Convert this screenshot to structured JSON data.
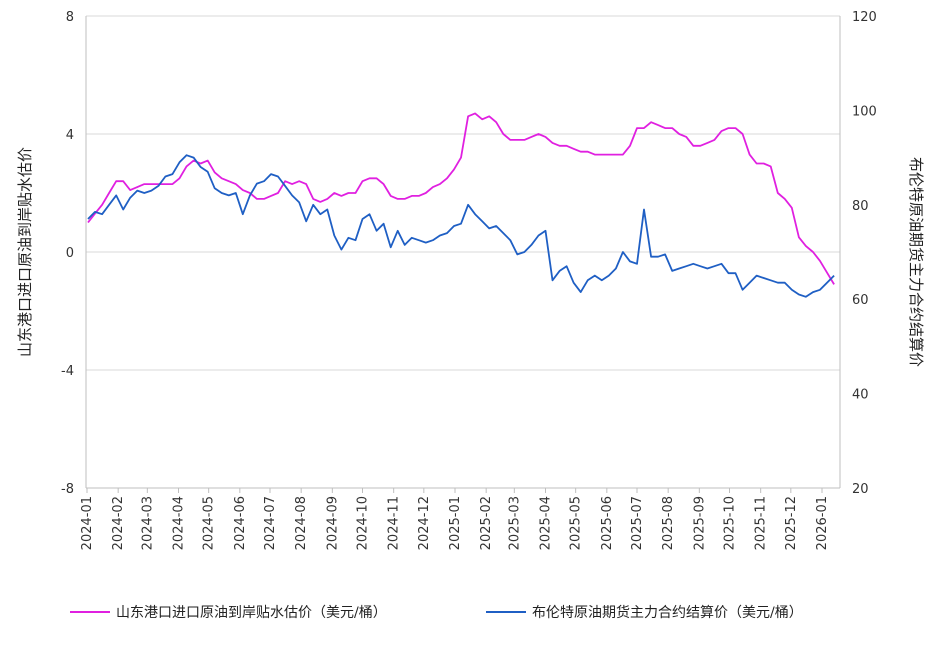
{
  "chart_data": {
    "type": "line",
    "y_left_label": "山东港口进口原油到岸贴水估价",
    "y_right_label": "布伦特原油期货主力合约结算价",
    "y_left_ticks": [
      "8",
      "4",
      "0",
      "-4",
      "-8"
    ],
    "y_right_ticks": [
      "120",
      "100",
      "80",
      "60",
      "40",
      "20"
    ],
    "ylim_left": [
      -8,
      8
    ],
    "ylim_right": [
      20,
      120
    ],
    "grid": "horizontal",
    "legend_position": "bottom",
    "x_ticks": [
      "2024-01",
      "2024-02",
      "2024-03",
      "2024-04",
      "2024-05",
      "2024-06",
      "2024-07",
      "2024-08",
      "2024-09",
      "2024-10",
      "2024-11",
      "2024-12",
      "2025-01",
      "2025-02",
      "2025-03",
      "2025-04",
      "2025-05",
      "2025-06",
      "2025-07",
      "2025-08",
      "2025-09",
      "2025-10",
      "2025-11",
      "2025-12",
      "2026-01"
    ],
    "series": [
      {
        "name": "山东港口进口原油到岸贴水估价（美元/桶）",
        "color": "#e020e0",
        "axis": "left",
        "x": [
          "2024-01-02",
          "2024-01-09",
          "2024-01-16",
          "2024-01-23",
          "2024-01-30",
          "2024-02-06",
          "2024-02-13",
          "2024-02-20",
          "2024-02-27",
          "2024-03-05",
          "2024-03-12",
          "2024-03-19",
          "2024-03-26",
          "2024-04-02",
          "2024-04-09",
          "2024-04-16",
          "2024-04-23",
          "2024-04-30",
          "2024-05-07",
          "2024-05-14",
          "2024-05-21",
          "2024-05-28",
          "2024-06-04",
          "2024-06-11",
          "2024-06-18",
          "2024-06-25",
          "2024-07-02",
          "2024-07-09",
          "2024-07-16",
          "2024-07-23",
          "2024-07-30",
          "2024-08-06",
          "2024-08-13",
          "2024-08-20",
          "2024-08-27",
          "2024-09-03",
          "2024-09-10",
          "2024-09-17",
          "2024-09-24",
          "2024-10-01",
          "2024-10-08",
          "2024-10-15",
          "2024-10-22",
          "2024-10-29",
          "2024-11-05",
          "2024-11-12",
          "2024-11-19",
          "2024-11-26",
          "2024-12-03",
          "2024-12-10",
          "2024-12-17",
          "2024-12-24",
          "2024-12-31",
          "2025-01-07",
          "2025-01-14",
          "2025-01-21",
          "2025-01-28",
          "2025-02-04",
          "2025-02-11",
          "2025-02-18",
          "2025-02-25",
          "2025-03-04",
          "2025-03-11",
          "2025-03-18",
          "2025-03-25",
          "2025-04-01",
          "2025-04-08",
          "2025-04-15",
          "2025-04-22",
          "2025-04-29",
          "2025-05-06",
          "2025-05-13",
          "2025-05-20",
          "2025-05-27",
          "2025-06-03",
          "2025-06-10",
          "2025-06-17",
          "2025-06-24",
          "2025-07-01",
          "2025-07-08",
          "2025-07-15",
          "2025-07-22",
          "2025-07-29",
          "2025-08-05",
          "2025-08-12",
          "2025-08-19",
          "2025-08-26",
          "2025-09-02",
          "2025-09-09",
          "2025-09-16",
          "2025-09-23",
          "2025-09-30",
          "2025-10-07",
          "2025-10-14",
          "2025-10-21",
          "2025-10-28",
          "2025-11-04",
          "2025-11-11",
          "2025-11-18",
          "2025-11-25",
          "2025-12-02",
          "2025-12-09",
          "2025-12-16",
          "2025-12-23",
          "2025-12-30",
          "2026-01-06",
          "2026-01-13"
        ],
        "values": [
          1.0,
          1.3,
          1.6,
          2.0,
          2.4,
          2.4,
          2.1,
          2.2,
          2.3,
          2.3,
          2.3,
          2.3,
          2.3,
          2.5,
          2.9,
          3.1,
          3.0,
          3.1,
          2.7,
          2.5,
          2.4,
          2.3,
          2.1,
          2.0,
          1.8,
          1.8,
          1.9,
          2.0,
          2.4,
          2.3,
          2.4,
          2.3,
          1.8,
          1.7,
          1.8,
          2.0,
          1.9,
          2.0,
          2.0,
          2.4,
          2.5,
          2.5,
          2.3,
          1.9,
          1.8,
          1.8,
          1.9,
          1.9,
          2.0,
          2.2,
          2.3,
          2.5,
          2.8,
          3.2,
          4.6,
          4.7,
          4.5,
          4.6,
          4.4,
          4.0,
          3.8,
          3.8,
          3.8,
          3.9,
          4.0,
          3.9,
          3.7,
          3.6,
          3.6,
          3.5,
          3.4,
          3.4,
          3.3,
          3.3,
          3.3,
          3.3,
          3.3,
          3.6,
          4.2,
          4.2,
          4.4,
          4.3,
          4.2,
          4.2,
          4.0,
          3.9,
          3.6,
          3.6,
          3.7,
          3.8,
          4.1,
          4.2,
          4.2,
          4.0,
          3.3,
          3.0,
          3.0,
          2.9,
          2.0,
          1.8,
          1.5,
          0.5,
          0.2,
          0.0,
          -0.3,
          -0.7,
          -1.1
        ]
      },
      {
        "name": "布伦特原油期货主力合约结算价（美元/桶）",
        "color": "#1f5fc4",
        "axis": "right",
        "x": [
          "2024-01-02",
          "2024-01-09",
          "2024-01-16",
          "2024-01-23",
          "2024-01-30",
          "2024-02-06",
          "2024-02-13",
          "2024-02-20",
          "2024-02-27",
          "2024-03-05",
          "2024-03-12",
          "2024-03-19",
          "2024-03-26",
          "2024-04-02",
          "2024-04-09",
          "2024-04-16",
          "2024-04-23",
          "2024-04-30",
          "2024-05-07",
          "2024-05-14",
          "2024-05-21",
          "2024-05-28",
          "2024-06-04",
          "2024-06-11",
          "2024-06-18",
          "2024-06-25",
          "2024-07-02",
          "2024-07-09",
          "2024-07-16",
          "2024-07-23",
          "2024-07-30",
          "2024-08-06",
          "2024-08-13",
          "2024-08-20",
          "2024-08-27",
          "2024-09-03",
          "2024-09-10",
          "2024-09-17",
          "2024-09-24",
          "2024-10-01",
          "2024-10-08",
          "2024-10-15",
          "2024-10-22",
          "2024-10-29",
          "2024-11-05",
          "2024-11-12",
          "2024-11-19",
          "2024-11-26",
          "2024-12-03",
          "2024-12-10",
          "2024-12-17",
          "2024-12-24",
          "2024-12-31",
          "2025-01-07",
          "2025-01-14",
          "2025-01-21",
          "2025-01-28",
          "2025-02-04",
          "2025-02-11",
          "2025-02-18",
          "2025-02-25",
          "2025-03-04",
          "2025-03-11",
          "2025-03-18",
          "2025-03-25",
          "2025-04-01",
          "2025-04-08",
          "2025-04-15",
          "2025-04-22",
          "2025-04-29",
          "2025-05-06",
          "2025-05-13",
          "2025-05-20",
          "2025-05-27",
          "2025-06-03",
          "2025-06-10",
          "2025-06-17",
          "2025-06-24",
          "2025-07-01",
          "2025-07-08",
          "2025-07-15",
          "2025-07-22",
          "2025-07-29",
          "2025-08-05",
          "2025-08-12",
          "2025-08-19",
          "2025-08-26",
          "2025-09-02",
          "2025-09-09",
          "2025-09-16",
          "2025-09-23",
          "2025-09-30",
          "2025-10-07",
          "2025-10-14",
          "2025-10-21",
          "2025-10-28",
          "2025-11-04",
          "2025-11-11",
          "2025-11-18",
          "2025-11-25",
          "2025-12-02",
          "2025-12-09",
          "2025-12-16",
          "2025-12-23",
          "2025-12-30",
          "2026-01-06",
          "2026-01-13"
        ],
        "values": [
          77.0,
          78.5,
          78.0,
          80.0,
          82.0,
          79.0,
          81.5,
          83.0,
          82.5,
          83.0,
          84.0,
          86.0,
          86.5,
          89.0,
          90.5,
          90.0,
          88.0,
          87.0,
          83.5,
          82.5,
          82.0,
          82.5,
          78.0,
          82.0,
          84.5,
          85.0,
          86.5,
          86.0,
          84.0,
          82.0,
          80.5,
          76.5,
          80.0,
          78.0,
          79.0,
          73.5,
          70.5,
          73.0,
          72.5,
          77.0,
          78.0,
          74.5,
          76.0,
          71.0,
          74.5,
          71.5,
          73.0,
          72.5,
          72.0,
          72.5,
          73.5,
          74.0,
          75.5,
          76.0,
          80.0,
          78.0,
          76.5,
          75.0,
          75.5,
          74.0,
          72.5,
          69.5,
          70.0,
          71.5,
          73.5,
          74.5,
          64.0,
          66.0,
          67.0,
          63.5,
          61.5,
          64.0,
          65.0,
          64.0,
          65.0,
          66.5,
          70.0,
          68.0,
          67.5,
          79.0,
          69.0,
          69.0,
          69.5,
          66.0,
          66.5,
          67.0,
          67.5,
          67.0,
          66.5,
          67.0,
          67.5,
          65.5,
          65.5,
          62.0,
          63.5,
          65.0,
          64.5,
          64.0,
          63.5,
          63.5,
          62.0,
          61.0,
          60.5,
          61.5,
          62.0,
          63.5,
          65.0
        ]
      }
    ]
  }
}
